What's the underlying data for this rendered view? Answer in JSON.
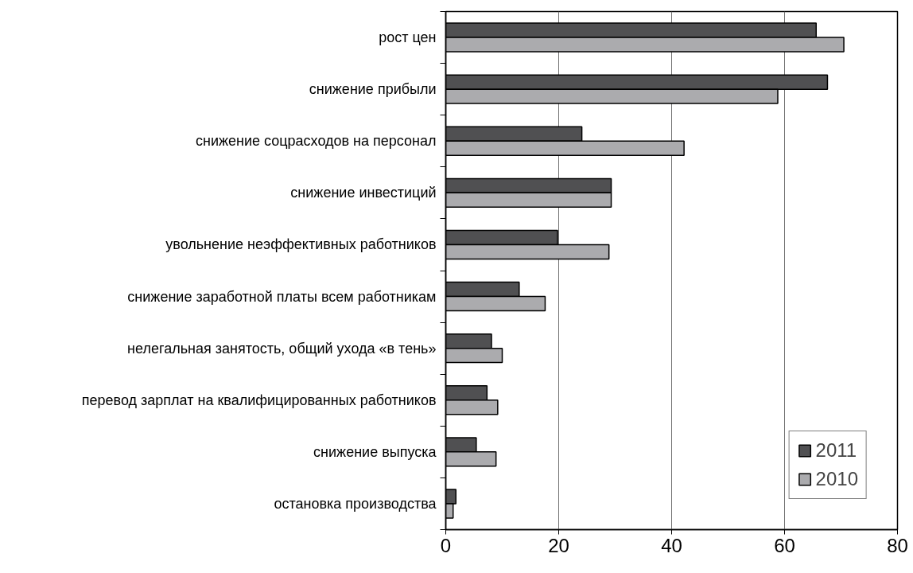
{
  "chart_data": {
    "type": "bar",
    "orientation": "horizontal",
    "categories": [
      "рост цен",
      "снижение прибыли",
      "снижение соцрасходов на персонал",
      "снижение инвестиций",
      "увольнение неэффективных работников",
      "снижение заработной платы всем работникам",
      "нелегальная занятость, общий ухода «в тень»",
      "перевод зарплат на квалифицированных работников",
      "снижение выпуска",
      "остановка производства"
    ],
    "series": [
      {
        "name": "2011",
        "color": "#505052",
        "values": [
          65.6,
          67.6,
          24.1,
          29.3,
          19.8,
          13.0,
          8.1,
          7.3,
          5.4,
          1.8
        ]
      },
      {
        "name": "2010",
        "color": "#ababae",
        "values": [
          70.5,
          58.8,
          42.2,
          29.3,
          28.9,
          17.6,
          10.0,
          9.2,
          8.9,
          1.3
        ]
      }
    ],
    "xlim": [
      0,
      80
    ],
    "xticks": [
      0,
      20,
      40,
      60,
      80
    ],
    "grid": "x",
    "legend": "bottom right"
  }
}
